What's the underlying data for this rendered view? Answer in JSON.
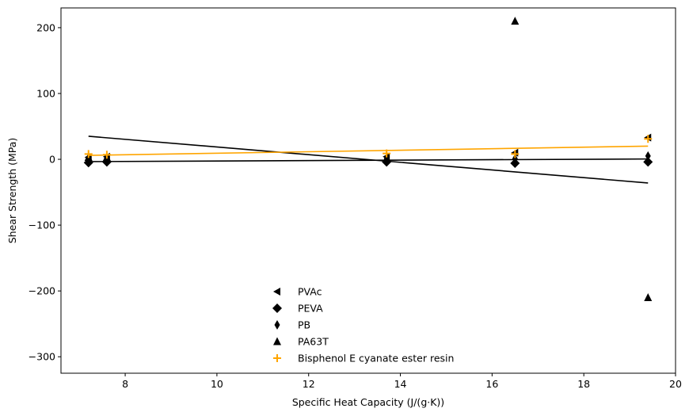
{
  "chart_data": {
    "type": "scatter",
    "xlabel": "Specific Heat Capacity (J/(g·K))",
    "ylabel": "Shear Strength (MPa)",
    "xlim": [
      6.6,
      20.0
    ],
    "ylim": [
      -325,
      230
    ],
    "x_ticks": [
      8,
      10,
      12,
      14,
      16,
      18,
      20
    ],
    "y_ticks": [
      -300,
      -200,
      -100,
      0,
      100,
      200
    ],
    "grid": false,
    "legend_position": "lower-center",
    "series": [
      {
        "name": "PVAc",
        "marker": "triangle-left",
        "color": "#000000",
        "points": [
          [
            7.2,
            3
          ],
          [
            7.6,
            4
          ],
          [
            13.7,
            4
          ],
          [
            16.5,
            10
          ],
          [
            19.4,
            33
          ]
        ]
      },
      {
        "name": "PEVA",
        "marker": "diamond",
        "color": "#000000",
        "points": [
          [
            7.2,
            -5
          ],
          [
            7.6,
            -4
          ],
          [
            13.7,
            -4
          ],
          [
            16.5,
            -6
          ],
          [
            19.4,
            -4
          ]
        ]
      },
      {
        "name": "PB",
        "marker": "thin-diamond",
        "color": "#000000",
        "points": [
          [
            7.2,
            2
          ],
          [
            7.6,
            2
          ],
          [
            13.7,
            1
          ],
          [
            16.5,
            1
          ],
          [
            19.4,
            5
          ]
        ]
      },
      {
        "name": "PA63T",
        "marker": "triangle-up",
        "color": "#000000",
        "points": [
          [
            7.2,
            3
          ],
          [
            7.6,
            3
          ],
          [
            13.7,
            1
          ],
          [
            16.5,
            210
          ],
          [
            19.4,
            -210
          ]
        ]
      },
      {
        "name": "Bisphenol E cyanate ester resin",
        "marker": "plus",
        "color": "#ffa500",
        "points": [
          [
            7.2,
            8
          ],
          [
            7.6,
            7
          ],
          [
            13.7,
            9
          ],
          [
            16.5,
            8
          ],
          [
            19.4,
            31
          ]
        ]
      }
    ],
    "trend_lines": [
      {
        "color": "#000000",
        "from": [
          7.2,
          -3.5
        ],
        "to": [
          19.4,
          0.5
        ]
      },
      {
        "color": "#000000",
        "from": [
          7.2,
          35
        ],
        "to": [
          19.4,
          -36
        ]
      },
      {
        "color": "#ffa500",
        "from": [
          7.2,
          6
        ],
        "to": [
          19.4,
          20
        ]
      }
    ]
  }
}
